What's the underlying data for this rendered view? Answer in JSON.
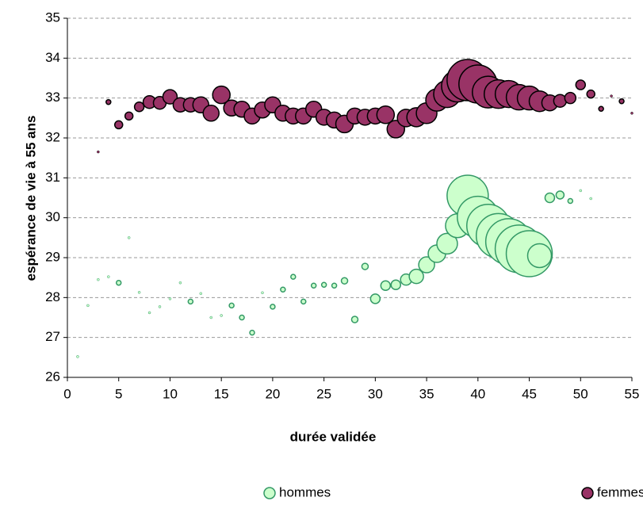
{
  "chart_data": {
    "type": "bubble",
    "xlabel": "durée validée",
    "ylabel": "espérance de vie à 55 ans",
    "xlim": [
      0,
      55
    ],
    "xticks": [
      0,
      5,
      10,
      15,
      20,
      25,
      30,
      35,
      40,
      45,
      50,
      55
    ],
    "ylim": [
      26,
      35
    ],
    "yticks": [
      26,
      27,
      28,
      29,
      30,
      31,
      32,
      33,
      34,
      35
    ],
    "grid": true,
    "legend": "bottom",
    "series": [
      {
        "name": "hommes",
        "color": "#ccffcc",
        "edge": "#339966",
        "x": [
          1,
          2,
          3,
          4,
          5,
          6,
          7,
          8,
          9,
          10,
          11,
          12,
          13,
          14,
          15,
          16,
          17,
          18,
          19,
          20,
          21,
          22,
          23,
          24,
          25,
          26,
          27,
          28,
          29,
          30,
          31,
          32,
          33,
          34,
          35,
          36,
          37,
          38,
          39,
          40,
          41,
          42,
          43,
          44,
          45,
          46,
          47,
          48,
          49,
          50,
          51
        ],
        "values": [
          26.52,
          27.8,
          28.45,
          28.52,
          28.37,
          29.5,
          28.13,
          27.62,
          27.77,
          27.97,
          28.37,
          27.9,
          28.1,
          27.5,
          27.55,
          27.8,
          27.5,
          27.12,
          28.12,
          27.77,
          28.2,
          28.52,
          27.9,
          28.3,
          28.32,
          28.3,
          28.42,
          27.45,
          28.78,
          27.97,
          28.3,
          28.32,
          28.45,
          28.53,
          28.82,
          29.1,
          29.35,
          29.8,
          30.55,
          30.02,
          29.8,
          29.55,
          29.4,
          29.22,
          29.1,
          29.05,
          30.5,
          30.57,
          30.42,
          30.68,
          30.48
        ],
        "sizes": [
          1.5,
          1.5,
          1.5,
          1.5,
          3,
          1.5,
          1.5,
          1.5,
          1.5,
          1.5,
          1.5,
          3,
          1.5,
          1.5,
          1.5,
          3,
          3,
          3,
          1.5,
          3,
          3,
          3,
          3,
          3,
          3,
          3,
          4,
          4,
          4,
          6,
          6,
          6,
          7,
          9,
          10,
          11,
          13,
          15,
          26,
          26,
          27,
          28,
          29,
          30,
          29,
          15,
          6,
          5,
          3,
          1.5,
          1.5
        ]
      },
      {
        "name": "femmes",
        "color": "#993366",
        "edge": "#000000",
        "x": [
          3,
          4,
          5,
          6,
          7,
          8,
          9,
          10,
          11,
          12,
          13,
          14,
          15,
          16,
          17,
          18,
          19,
          20,
          21,
          22,
          23,
          24,
          25,
          26,
          27,
          28,
          29,
          30,
          31,
          32,
          33,
          34,
          35,
          36,
          37,
          38,
          39,
          40,
          41,
          42,
          43,
          44,
          45,
          46,
          47,
          48,
          49,
          50,
          51,
          52,
          53,
          54,
          55
        ],
        "values": [
          31.65,
          32.9,
          32.33,
          32.55,
          32.78,
          32.9,
          32.88,
          33.03,
          32.83,
          32.83,
          32.83,
          32.62,
          33.08,
          32.75,
          32.72,
          32.55,
          32.7,
          32.83,
          32.62,
          32.55,
          32.55,
          32.72,
          32.52,
          32.45,
          32.35,
          32.55,
          32.52,
          32.55,
          32.58,
          32.22,
          32.5,
          32.52,
          32.62,
          32.95,
          33.1,
          33.3,
          33.45,
          33.35,
          33.15,
          33.1,
          33.1,
          33.02,
          33.0,
          32.92,
          32.88,
          32.93,
          33.0,
          33.33,
          33.1,
          32.73,
          33.05,
          32.92,
          32.62
        ],
        "sizes": [
          1.5,
          3,
          5,
          5,
          6,
          8,
          8,
          9,
          9,
          9,
          10,
          10,
          11,
          10,
          10,
          10,
          10,
          10,
          10,
          10,
          10,
          10,
          10,
          10,
          11,
          10,
          10,
          10,
          11,
          11,
          11,
          12,
          13,
          14,
          17,
          20,
          26,
          24,
          20,
          18,
          17,
          16,
          15,
          13,
          10,
          8,
          7,
          6,
          5,
          3,
          1.5,
          3,
          1.5
        ]
      }
    ]
  }
}
